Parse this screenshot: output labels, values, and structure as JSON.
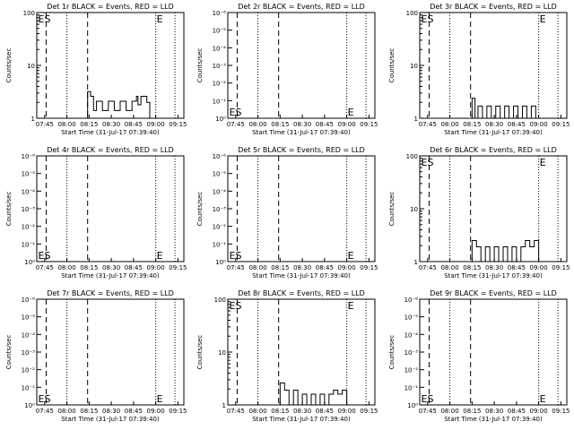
{
  "common": {
    "ylabel": "Counts/sec",
    "xlabel": "Start Time (31-Jul-17 07:39:40)",
    "xticks": [
      "07:45",
      "08:00",
      "08:15",
      "08:30",
      "08:45",
      "09:00",
      "09:15"
    ],
    "marker_labels": [
      "ES",
      "E"
    ]
  },
  "chart_data": [
    {
      "type": "line",
      "title": "Det 1r BLACK = Events, RED = LLD",
      "ylabel": "Counts/sec",
      "xlabel": "Start Time (31-Jul-17 07:39:40)",
      "xlim": [
        "07:39:40",
        "09:19"
      ],
      "ylim": [
        1,
        100
      ],
      "yscale": "log",
      "ytick_labels": [
        "1",
        "10",
        "100"
      ],
      "xticks": [
        "07:45",
        "08:00",
        "08:15",
        "08:30",
        "08:45",
        "09:00",
        "09:15"
      ],
      "dashed_lines": [
        "07:46",
        "08:14"
      ],
      "dotted_lines": [
        "08:00",
        "09:00",
        "09:13"
      ],
      "markers": [
        {
          "label": "ES",
          "x": "07:40",
          "pos": "top"
        },
        {
          "label": "E",
          "x": "09:00",
          "pos": "top"
        }
      ],
      "series": [
        {
          "x": [
            "08:13",
            "08:14",
            "08:16",
            "08:18",
            "08:20",
            "08:24",
            "08:28",
            "08:32",
            "08:36",
            "08:40",
            "08:44",
            "08:47",
            "08:48",
            "08:50",
            "08:54",
            "08:56",
            "09:01"
          ],
          "y": [
            1,
            3.2,
            2.6,
            1.4,
            2.1,
            1.4,
            2.1,
            1.4,
            2.1,
            1.4,
            2.1,
            2.6,
            1.8,
            2.6,
            2.0,
            1.0,
            1.0
          ]
        }
      ]
    },
    {
      "type": "line",
      "title": "Det 2r BLACK = Events, RED = LLD",
      "ylabel": "Counts/sec",
      "xlabel": "Start Time (31-Jul-17 07:39:40)",
      "xlim": [
        "07:39:40",
        "09:19"
      ],
      "yscale": "log",
      "ytick_labels": [
        "10⁰",
        "10⁻¹",
        "10⁻²",
        "10⁻³",
        "10⁻⁴",
        "10⁻⁵",
        "10⁻⁶"
      ],
      "xticks": [
        "07:45",
        "08:00",
        "08:15",
        "08:30",
        "08:45",
        "09:00",
        "09:15"
      ],
      "dashed_lines": [
        "07:46",
        "08:14"
      ],
      "dotted_lines": [
        "08:00",
        "09:00",
        "09:13"
      ],
      "markers": [
        {
          "label": "ES",
          "x": "07:40",
          "pos": "bottom"
        },
        {
          "label": "E",
          "x": "09:00",
          "pos": "bottom"
        }
      ],
      "series": []
    },
    {
      "type": "line",
      "title": "Det 3r BLACK = Events, RED = LLD",
      "ylabel": "Counts/sec",
      "xlabel": "Start Time (31-Jul-17 07:39:40)",
      "xlim": [
        "07:39:40",
        "09:19"
      ],
      "ylim": [
        1,
        100
      ],
      "yscale": "log",
      "ytick_labels": [
        "1",
        "10",
        "100"
      ],
      "xticks": [
        "07:45",
        "08:00",
        "08:15",
        "08:30",
        "08:45",
        "09:00",
        "09:15"
      ],
      "dashed_lines": [
        "07:46",
        "08:14"
      ],
      "dotted_lines": [
        "08:00",
        "09:00",
        "09:13"
      ],
      "markers": [
        {
          "label": "ES",
          "x": "07:40",
          "pos": "top"
        },
        {
          "label": "E",
          "x": "09:00",
          "pos": "top"
        }
      ],
      "series": [
        {
          "x": [
            "08:14",
            "08:15",
            "08:17",
            "08:19",
            "08:22",
            "08:25",
            "08:28",
            "08:31",
            "08:34",
            "08:37",
            "08:40",
            "08:43",
            "08:46",
            "08:49",
            "08:52",
            "08:55",
            "08:58",
            "09:01"
          ],
          "y": [
            1,
            2.4,
            1.0,
            1.7,
            1.0,
            1.7,
            1.0,
            1.7,
            1.0,
            1.7,
            1.0,
            1.7,
            1.0,
            1.7,
            1.0,
            1.7,
            1.0,
            1.0
          ]
        }
      ]
    },
    {
      "type": "line",
      "title": "Det 4r BLACK = Events, RED = LLD",
      "ylabel": "Counts/sec",
      "xlabel": "Start Time (31-Jul-17 07:39:40)",
      "xlim": [
        "07:39:40",
        "09:19"
      ],
      "yscale": "log",
      "ytick_labels": [
        "10⁰",
        "10⁻¹",
        "10⁻²",
        "10⁻³",
        "10⁻⁴",
        "10⁻⁵",
        "10⁻⁶"
      ],
      "xticks": [
        "07:45",
        "08:00",
        "08:15",
        "08:30",
        "08:45",
        "09:00",
        "09:15"
      ],
      "dashed_lines": [
        "07:46",
        "08:14"
      ],
      "dotted_lines": [
        "08:00",
        "09:00",
        "09:13"
      ],
      "markers": [
        {
          "label": "ES",
          "x": "07:40",
          "pos": "bottom"
        },
        {
          "label": "E",
          "x": "09:00",
          "pos": "bottom"
        }
      ],
      "series": []
    },
    {
      "type": "line",
      "title": "Det 5r BLACK = Events, RED = LLD",
      "ylabel": "Counts/sec",
      "xlabel": "Start Time (31-Jul-17 07:39:40)",
      "xlim": [
        "07:39:40",
        "09:19"
      ],
      "yscale": "log",
      "ytick_labels": [
        "10⁰",
        "10⁻¹",
        "10⁻²",
        "10⁻³",
        "10⁻⁴",
        "10⁻⁵",
        "10⁻⁶"
      ],
      "xticks": [
        "07:45",
        "08:00",
        "08:15",
        "08:30",
        "08:45",
        "09:00",
        "09:15"
      ],
      "dashed_lines": [
        "07:46",
        "08:14"
      ],
      "dotted_lines": [
        "08:00",
        "09:00",
        "09:13"
      ],
      "markers": [
        {
          "label": "ES",
          "x": "07:40",
          "pos": "bottom"
        },
        {
          "label": "E",
          "x": "09:00",
          "pos": "bottom"
        }
      ],
      "series": []
    },
    {
      "type": "line",
      "title": "Det 6r BLACK = Events, RED = LLD",
      "ylabel": "Counts/sec",
      "xlabel": "Start Time (31-Jul-17 07:39:40)",
      "xlim": [
        "07:39:40",
        "09:19"
      ],
      "ylim": [
        1,
        100
      ],
      "yscale": "log",
      "ytick_labels": [
        "1",
        "10",
        "100"
      ],
      "xticks": [
        "07:45",
        "08:00",
        "08:15",
        "08:30",
        "08:45",
        "09:00",
        "09:15"
      ],
      "dashed_lines": [
        "07:46",
        "08:14"
      ],
      "dotted_lines": [
        "08:00",
        "09:00",
        "09:13"
      ],
      "markers": [
        {
          "label": "ES",
          "x": "07:40",
          "pos": "top"
        },
        {
          "label": "E",
          "x": "09:00",
          "pos": "top"
        }
      ],
      "series": [
        {
          "x": [
            "08:14",
            "08:15",
            "08:18",
            "08:21",
            "08:24",
            "08:27",
            "08:30",
            "08:33",
            "08:36",
            "08:39",
            "08:42",
            "08:45",
            "08:48",
            "08:51",
            "08:54",
            "08:57",
            "09:00",
            "09:01"
          ],
          "y": [
            1,
            2.5,
            1.9,
            1.0,
            1.9,
            1.0,
            1.9,
            1.0,
            1.9,
            1.0,
            1.9,
            1.0,
            1.9,
            2.5,
            1.9,
            2.5,
            1.0,
            1.0
          ]
        }
      ]
    },
    {
      "type": "line",
      "title": "Det 7r BLACK = Events, RED = LLD",
      "ylabel": "Counts/sec",
      "xlabel": "Start Time (31-Jul-17 07:39:40)",
      "xlim": [
        "07:39:40",
        "09:19"
      ],
      "yscale": "log",
      "ytick_labels": [
        "10⁰",
        "10⁻¹",
        "10⁻²",
        "10⁻³",
        "10⁻⁴",
        "10⁻⁵",
        "10⁻⁶"
      ],
      "xticks": [
        "07:45",
        "08:00",
        "08:15",
        "08:30",
        "08:45",
        "09:00",
        "09:15"
      ],
      "dashed_lines": [
        "07:46",
        "08:14"
      ],
      "dotted_lines": [
        "08:00",
        "09:00",
        "09:13"
      ],
      "markers": [
        {
          "label": "ES",
          "x": "07:40",
          "pos": "bottom"
        },
        {
          "label": "E",
          "x": "09:00",
          "pos": "bottom"
        }
      ],
      "series": []
    },
    {
      "type": "line",
      "title": "Det 8r BLACK = Events, RED = LLD",
      "ylabel": "Counts/sec",
      "xlabel": "Start Time (31-Jul-17 07:39:40)",
      "xlim": [
        "07:39:40",
        "09:19"
      ],
      "ylim": [
        1,
        100
      ],
      "yscale": "log",
      "ytick_labels": [
        "1",
        "10",
        "100"
      ],
      "xticks": [
        "07:45",
        "08:00",
        "08:15",
        "08:30",
        "08:45",
        "09:00",
        "09:15"
      ],
      "dashed_lines": [
        "07:46",
        "08:14"
      ],
      "dotted_lines": [
        "08:00",
        "09:00",
        "09:13"
      ],
      "markers": [
        {
          "label": "ES",
          "x": "07:40",
          "pos": "top"
        },
        {
          "label": "E",
          "x": "09:00",
          "pos": "top"
        }
      ],
      "series": [
        {
          "x": [
            "08:14",
            "08:15",
            "08:18",
            "08:21",
            "08:24",
            "08:27",
            "08:30",
            "08:33",
            "08:36",
            "08:39",
            "08:42",
            "08:45",
            "08:48",
            "08:51",
            "08:54",
            "08:57",
            "09:00",
            "09:01"
          ],
          "y": [
            1,
            2.6,
            1.9,
            1.0,
            1.9,
            1.0,
            1.6,
            1.0,
            1.6,
            1.0,
            1.6,
            1.0,
            1.6,
            1.9,
            1.6,
            1.9,
            1.0,
            1.0
          ]
        }
      ]
    },
    {
      "type": "line",
      "title": "Det 9r BLACK = Events, RED = LLD",
      "ylabel": "Counts/sec",
      "xlabel": "Start Time (31-Jul-17 07:39:40)",
      "xlim": [
        "07:39:40",
        "09:19"
      ],
      "yscale": "log",
      "ytick_labels": [
        "10⁰",
        "10⁻¹",
        "10⁻²",
        "10⁻³",
        "10⁻⁴",
        "10⁻⁵",
        "10⁻⁶"
      ],
      "xticks": [
        "07:45",
        "08:00",
        "08:15",
        "08:30",
        "08:45",
        "09:00",
        "09:15"
      ],
      "dashed_lines": [
        "07:46",
        "08:14"
      ],
      "dotted_lines": [
        "08:00",
        "09:00",
        "09:13"
      ],
      "markers": [
        {
          "label": "ES",
          "x": "07:40",
          "pos": "bottom"
        },
        {
          "label": "E",
          "x": "09:00",
          "pos": "bottom"
        }
      ],
      "series": []
    }
  ]
}
